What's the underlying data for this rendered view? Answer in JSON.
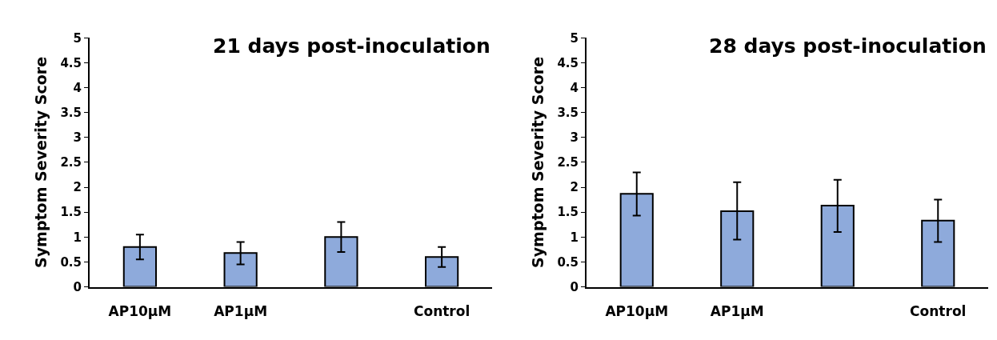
{
  "chart_data": [
    {
      "type": "bar",
      "title": "21 days post-inoculation",
      "ylabel": "Symptom Severity Score",
      "categories": [
        "AP10µM",
        "AP1µM",
        null,
        "Control"
      ],
      "values": [
        0.8,
        0.68,
        1.0,
        0.6
      ],
      "errors": [
        [
          0.55,
          1.05
        ],
        [
          0.45,
          0.9
        ],
        [
          0.7,
          1.3
        ],
        [
          0.4,
          0.8
        ]
      ],
      "color": "#8eaadb",
      "ylim": [
        0,
        5
      ],
      "yticks": [
        0,
        0.5,
        1,
        1.5,
        2,
        2.5,
        3,
        3.5,
        4,
        4.5,
        5
      ]
    },
    {
      "type": "bar",
      "title": "28 days post-inoculation",
      "ylabel": "Symptom Severity Score",
      "categories": [
        "AP10µM",
        "AP1µM",
        null,
        "Control"
      ],
      "values": [
        1.87,
        1.52,
        1.63,
        1.33
      ],
      "errors": [
        [
          1.43,
          2.3
        ],
        [
          0.95,
          2.1
        ],
        [
          1.1,
          2.15
        ],
        [
          0.9,
          1.75
        ]
      ],
      "color": "#8eaadb",
      "ylim": [
        0,
        5
      ],
      "yticks": [
        0,
        0.5,
        1,
        1.5,
        2,
        2.5,
        3,
        3.5,
        4,
        4.5,
        5
      ]
    }
  ]
}
